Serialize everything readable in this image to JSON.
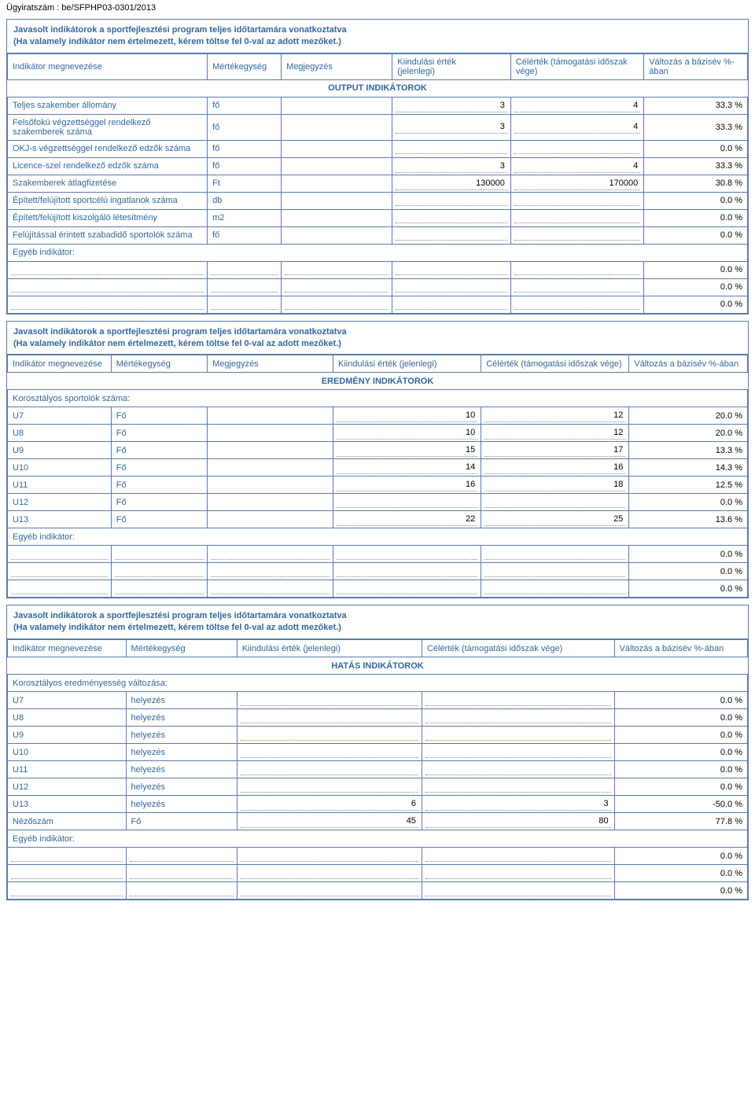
{
  "ugyiratszam": "Ügyiratszám : be/SFPHP03-0301/2013",
  "section_title": "Javasolt indikátorok a sportfejlesztési program teljes időtartamára vonatkoztatva\n(Ha valamely indikátor nem értelmezett, kérem töltse fel 0-val az adott mezőket.)",
  "headers": {
    "indikator": "Indikátor megnevezése",
    "mertekegyseg": "Mértékegység",
    "megjegyzes": "Megjegyzés",
    "kiindulasi": "Kiindulási érték (jelenlegi)",
    "kiindulasi_ml": "Kiindulási érték\n(jelenlegi)",
    "celertek": "Célérték (támogatási időszak vége)",
    "celertek_ml": "Célérték (támogatási időszak\nvége)",
    "valtozas": "Változás a bázisév %-ában",
    "valtozas_ml": "Változás a bázisév %-\nában"
  },
  "group_headings": {
    "output": "OUTPUT INDIKÁTOROK",
    "eredmeny": "EREDMÉNY INDIKÁTOROK",
    "hatas": "HATÁS INDIKÁTOROK"
  },
  "egyeb": "Egyéb indikátor:",
  "korosztaly_label": "Korosztályos sportolók száma:",
  "korosztaly_eredm_label": "Korosztályos eredményesség változása:",
  "output_rows": [
    {
      "name": "Teljes szakember állomány",
      "unit": "fő",
      "start": "3",
      "target": "4",
      "change": "33.3 %"
    },
    {
      "name": "Felsőfokú végzettséggel rendelkező szakemberek száma",
      "unit": "fő",
      "start": "3",
      "target": "4",
      "change": "33.3 %"
    },
    {
      "name": "OKJ-s végzettséggel rendelkező edzők száma",
      "unit": "fő",
      "start": "",
      "target": "",
      "change": "0.0 %"
    },
    {
      "name": "Licence-szel rendelkező edzők száma",
      "unit": "fő",
      "start": "3",
      "target": "4",
      "change": "33.3 %"
    },
    {
      "name": "Szakemberek átlagfizetése",
      "unit": "Ft",
      "start": "130000",
      "target": "170000",
      "change": "30.8 %"
    },
    {
      "name": "Épített/felújított sportcélú ingatlanok száma",
      "unit": "db",
      "start": "",
      "target": "",
      "change": "0.0 %"
    },
    {
      "name": "Épített/felújított kiszolgáló létesítmény",
      "unit": "m2",
      "start": "",
      "target": "",
      "change": "0.0 %"
    },
    {
      "name": "Felújítással érintett szabadidő sportolók száma",
      "unit": "fő",
      "start": "",
      "target": "",
      "change": "0.0 %"
    }
  ],
  "output_egyeb": [
    {
      "change": "0.0 %"
    },
    {
      "change": "0.0 %"
    },
    {
      "change": "0.0 %"
    }
  ],
  "eredmeny_rows": [
    {
      "name": "U7",
      "unit": "Fő",
      "start": "10",
      "target": "12",
      "change": "20.0 %"
    },
    {
      "name": "U8",
      "unit": "Fő",
      "start": "10",
      "target": "12",
      "change": "20.0 %"
    },
    {
      "name": "U9",
      "unit": "Fő",
      "start": "15",
      "target": "17",
      "change": "13.3 %"
    },
    {
      "name": "U10",
      "unit": "Fő",
      "start": "14",
      "target": "16",
      "change": "14.3 %"
    },
    {
      "name": "U11",
      "unit": "Fő",
      "start": "16",
      "target": "18",
      "change": "12.5 %"
    },
    {
      "name": "U12",
      "unit": "Fő",
      "start": "",
      "target": "",
      "change": "0.0 %"
    },
    {
      "name": "U13",
      "unit": "Fő",
      "start": "22",
      "target": "25",
      "change": "13.6 %"
    }
  ],
  "eredmeny_egyeb": [
    {
      "change": "0.0 %"
    },
    {
      "change": "0.0 %"
    },
    {
      "change": "0.0 %"
    }
  ],
  "hatas_rows": [
    {
      "name": "U7",
      "unit": "helyezés",
      "start": "",
      "target": "",
      "change": "0.0 %"
    },
    {
      "name": "U8",
      "unit": "helyezés",
      "start": "",
      "target": "",
      "change": "0.0 %"
    },
    {
      "name": "U9",
      "unit": "helyezés",
      "start": "",
      "target": "",
      "change": "0.0 %"
    },
    {
      "name": "U10",
      "unit": "helyezés",
      "start": "",
      "target": "",
      "change": "0.0 %"
    },
    {
      "name": "U11",
      "unit": "helyezés",
      "start": "",
      "target": "",
      "change": "0.0 %"
    },
    {
      "name": "U12",
      "unit": "helyezés",
      "start": "",
      "target": "",
      "change": "0.0 %"
    },
    {
      "name": "U13",
      "unit": "helyezés",
      "start": "6",
      "target": "3",
      "change": "-50.0 %"
    },
    {
      "name": "Nézőszám",
      "unit": "Fő",
      "start": "45",
      "target": "80",
      "change": "77.8 %"
    }
  ],
  "hatas_egyeb": [
    {
      "change": "0.0 %"
    },
    {
      "change": "0.0 %"
    },
    {
      "change": "0.0 %"
    }
  ]
}
